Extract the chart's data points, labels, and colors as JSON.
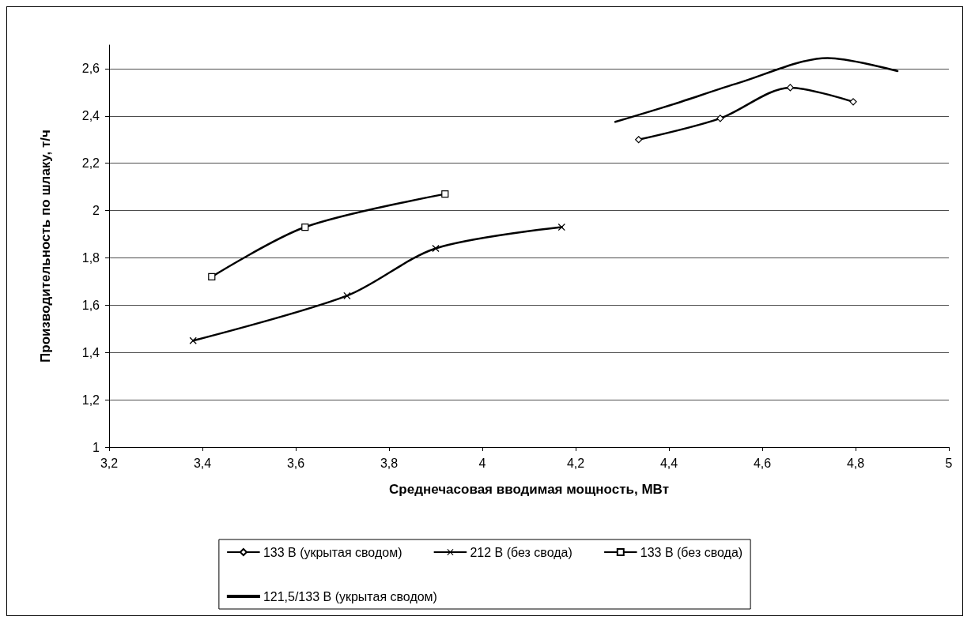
{
  "chart_data": {
    "type": "line",
    "xlabel": "Среднечасовая вводимая мощность, МВт",
    "ylabel": "Производительность по шлаку, т/ч",
    "xlim": [
      3.2,
      5
    ],
    "xticks": [
      {
        "value": 3.2,
        "label": "3,2"
      },
      {
        "value": 3.4,
        "label": "3,4"
      },
      {
        "value": 3.6,
        "label": "3,6"
      },
      {
        "value": 3.8,
        "label": "3,8"
      },
      4,
      {
        "value": 4.2,
        "label": "4,2"
      },
      {
        "value": 4.4,
        "label": "4,4"
      },
      {
        "value": 4.6,
        "label": "4,6"
      },
      {
        "value": 4.8,
        "label": "4,8"
      },
      5
    ],
    "ylim": [
      1,
      2.7
    ],
    "yticks": [
      1,
      {
        "value": 1.2,
        "label": "1,2"
      },
      {
        "value": 1.4,
        "label": "1,4"
      },
      {
        "value": 1.6,
        "label": "1,6"
      },
      {
        "value": 1.8,
        "label": "1,8"
      },
      2,
      {
        "value": 2.2,
        "label": "2,2"
      },
      {
        "value": 2.4,
        "label": "2,4"
      },
      {
        "value": 2.6,
        "label": "2,6"
      }
    ],
    "grid": "y",
    "legend": "bottom",
    "line_style": "solid",
    "series": [
      {
        "name": "133 В (укрытая сводом)",
        "color": "#000000",
        "marker": "diamond",
        "x": [
          4.335,
          4.51,
          4.66,
          4.795
        ],
        "values": [
          2.3,
          2.39,
          2.52,
          2.46
        ]
      },
      {
        "name": "212 В (без свода)",
        "color": "#000000",
        "marker": "cross",
        "x": [
          3.38,
          3.71,
          3.9,
          4.17
        ],
        "values": [
          1.45,
          1.64,
          1.84,
          1.93
        ]
      },
      {
        "name": "133 В (без свода)",
        "color": "#000000",
        "marker": "square",
        "x": [
          3.42,
          3.62,
          3.92
        ],
        "values": [
          1.72,
          1.93,
          2.07
        ]
      },
      {
        "name": "121,5/133 В (укрытая сводом)",
        "color": "#000000",
        "marker": "none",
        "x": [
          4.285,
          4.41,
          4.55,
          4.74,
          4.89
        ],
        "values": [
          2.375,
          2.45,
          2.54,
          2.645,
          2.59
        ]
      }
    ]
  }
}
